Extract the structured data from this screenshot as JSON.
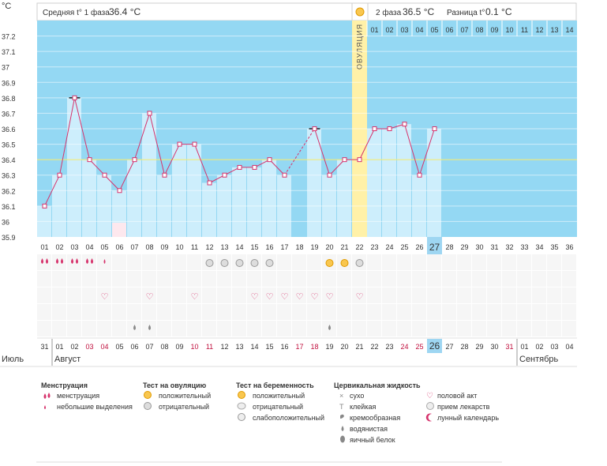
{
  "header": {
    "unit": "°C",
    "phase1_label": "Средняя t° 1 фаза",
    "phase1_value": "36.4 °C",
    "phase2_label": "2 фаза",
    "phase2_value": "36.5 °C",
    "diff_label": "Разница t°",
    "diff_value": "0.1 °C",
    "ovulation_label": "ОВУЛЯЦИЯ"
  },
  "colors": {
    "bg_blue": "#94d8f3",
    "bar_fill": "#cdeefc",
    "line": "#d6336c",
    "ovulation": "#fff1a8",
    "today": "#9ed6f2",
    "red_day": "#c0103e"
  },
  "chart_data": {
    "type": "line",
    "ylabel": "°C",
    "ylim": [
      35.9,
      37.3
    ],
    "y_ticks": [
      "37.2",
      "37.1",
      "37",
      "36.9",
      "36.8",
      "36.7",
      "36.6",
      "36.5",
      "36.4",
      "36.3",
      "36.2",
      "36.1",
      "36",
      "35.9"
    ],
    "cycle_days": [
      "01",
      "02",
      "03",
      "04",
      "05",
      "06",
      "07",
      "08",
      "09",
      "10",
      "11",
      "12",
      "13",
      "14",
      "15",
      "16",
      "17",
      "18",
      "19",
      "20",
      "21",
      "22",
      "23",
      "24",
      "25",
      "26",
      "27",
      "28",
      "29",
      "30",
      "31",
      "32",
      "33",
      "34",
      "35",
      "36"
    ],
    "temperatures": [
      36.1,
      36.3,
      36.8,
      36.4,
      36.3,
      36.2,
      36.4,
      36.7,
      36.3,
      36.5,
      36.5,
      36.25,
      36.3,
      36.35,
      36.35,
      36.4,
      36.3,
      null,
      36.6,
      36.3,
      36.4,
      36.4,
      36.6,
      36.6,
      36.63,
      36.3,
      36.6,
      null,
      null,
      null,
      null,
      null,
      null,
      null,
      null,
      null
    ],
    "cover_line": 36.4,
    "ovulation_day": "22",
    "highlighted_day": "27",
    "phase2_numbers": [
      "01",
      "02",
      "03",
      "04",
      "05",
      "06",
      "07",
      "08",
      "09",
      "10",
      "11",
      "12",
      "13",
      "14"
    ],
    "calendar_dates": [
      "31",
      "01",
      "02",
      "03",
      "04",
      "05",
      "06",
      "07",
      "08",
      "09",
      "10",
      "11",
      "12",
      "13",
      "14",
      "15",
      "16",
      "17",
      "18",
      "19",
      "20",
      "21",
      "22",
      "23",
      "24",
      "25",
      "26",
      "27",
      "28",
      "29",
      "30",
      "31",
      "01",
      "02",
      "03",
      "04"
    ],
    "calendar_red": [
      "03",
      "04",
      "10",
      "11",
      "17",
      "18",
      "24",
      "25",
      "31"
    ],
    "months": [
      "Июль",
      "Август",
      "Сентябрь"
    ]
  },
  "symptoms": {
    "menstruation": [
      [
        "drops3",
        0
      ],
      [
        "drops3",
        1
      ],
      [
        "drops3",
        2
      ],
      [
        "drops2",
        3
      ],
      [
        "drop",
        4
      ]
    ],
    "ovulation_tests": [
      [
        "neg",
        11
      ],
      [
        "neg",
        12
      ],
      [
        "neg",
        13
      ],
      [
        "neg",
        14
      ],
      [
        "neg",
        15
      ],
      [
        "pos",
        19
      ],
      [
        "pos",
        20
      ],
      [
        "neg",
        21
      ]
    ],
    "intercourse": [
      4,
      7,
      10,
      14,
      15,
      16,
      17,
      18,
      19,
      21
    ],
    "fluid": [
      6,
      7,
      19
    ],
    "moon": 5
  },
  "legend": {
    "menstruation": {
      "title": "Менструация",
      "items": [
        "менструация",
        "небольшие выделения"
      ]
    },
    "ovulation_test": {
      "title": "Тест на овуляцию",
      "items": [
        "положительный",
        "отрицательный"
      ]
    },
    "pregnancy_test": {
      "title": "Тест на беременность",
      "items": [
        "положительный",
        "отрицательный",
        "слабоположительный"
      ]
    },
    "cervical": {
      "title": "Цервикальная жидкость",
      "items": [
        "сухо",
        "клейкая",
        "кремообразная",
        "водянистая",
        "яичный белок"
      ]
    },
    "other": {
      "items": [
        "половой акт",
        "прием лекарств",
        "лунный календарь"
      ]
    }
  }
}
